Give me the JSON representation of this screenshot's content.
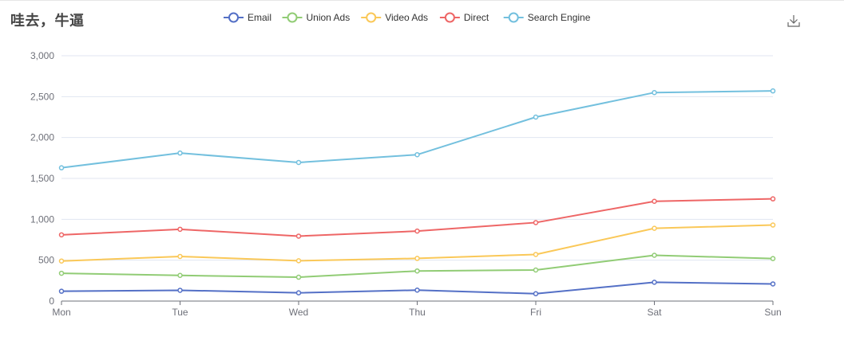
{
  "title": "哇去，牛逼",
  "toolbox": {
    "save_icon": "download-icon"
  },
  "chart_data": {
    "type": "line",
    "categories": [
      "Mon",
      "Tue",
      "Wed",
      "Thu",
      "Fri",
      "Sat",
      "Sun"
    ],
    "ylim": [
      0,
      3000
    ],
    "yticks": [
      0,
      500,
      1000,
      1500,
      2000,
      2500,
      3000
    ],
    "ytick_labels": [
      "0",
      "500",
      "1,000",
      "1,500",
      "2,000",
      "2,500",
      "3,000"
    ],
    "grid": "horizontal",
    "legend_position": "top-center",
    "series": [
      {
        "name": "Email",
        "color": "#5470c6",
        "values": [
          120,
          132,
          101,
          134,
          90,
          230,
          210
        ]
      },
      {
        "name": "Union Ads",
        "color": "#91cc75",
        "values": [
          220,
          182,
          191,
          234,
          290,
          330,
          310
        ]
      },
      {
        "name": "Video Ads",
        "color": "#fac858",
        "values": [
          150,
          232,
          201,
          154,
          190,
          330,
          410
        ]
      },
      {
        "name": "Direct",
        "color": "#ee6666",
        "values": [
          320,
          332,
          301,
          334,
          390,
          330,
          320
        ]
      },
      {
        "name": "Search Engine",
        "color": "#73c0de",
        "values": [
          820,
          932,
          901,
          934,
          1290,
          1330,
          1320
        ]
      }
    ],
    "stacked": true
  }
}
